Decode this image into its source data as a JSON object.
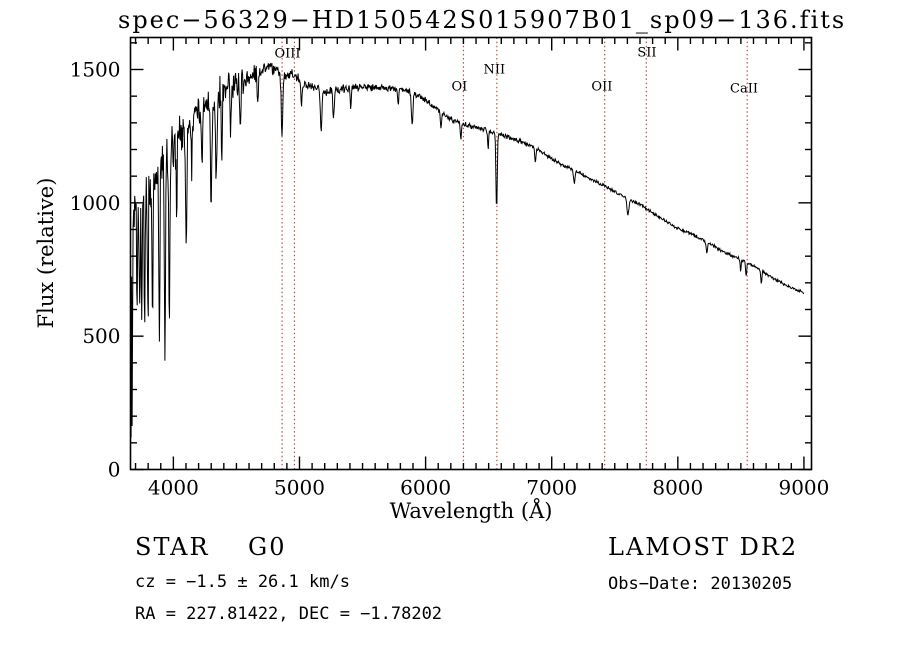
{
  "page": {
    "background": "#ffffff"
  },
  "chart_data": {
    "type": "line",
    "title": "spec−56329−HD150542S015907B01_sp09−136.fits",
    "xlabel": "Wavelength (Å)",
    "ylabel": "Flux (relative)",
    "xlim": [
      3660,
      9060
    ],
    "ylim": [
      0,
      1620
    ],
    "x_ticks": [
      4000,
      5000,
      6000,
      7000,
      8000,
      9000
    ],
    "y_ticks": [
      0,
      500,
      1000,
      1500
    ],
    "x_minor_step": 100,
    "y_minor_step": 100,
    "grid": false,
    "legend": "none",
    "trace_color": "#000000",
    "marker_line_color": "#aa5a52",
    "continuum_points": [
      [
        3660,
        620
      ],
      [
        3680,
        820
      ],
      [
        3700,
        950
      ],
      [
        3760,
        1020
      ],
      [
        3820,
        1070
      ],
      [
        3880,
        1120
      ],
      [
        3940,
        1165
      ],
      [
        4000,
        1215
      ],
      [
        4060,
        1255
      ],
      [
        4120,
        1300
      ],
      [
        4180,
        1335
      ],
      [
        4240,
        1370
      ],
      [
        4300,
        1400
      ],
      [
        4360,
        1412
      ],
      [
        4420,
        1425
      ],
      [
        4480,
        1440
      ],
      [
        4540,
        1452
      ],
      [
        4600,
        1466
      ],
      [
        4660,
        1486
      ],
      [
        4720,
        1505
      ],
      [
        4780,
        1506
      ],
      [
        4840,
        1496
      ],
      [
        4900,
        1482
      ],
      [
        4960,
        1476
      ],
      [
        5020,
        1452
      ],
      [
        5080,
        1436
      ],
      [
        5140,
        1426
      ],
      [
        5200,
        1420
      ],
      [
        5260,
        1420
      ],
      [
        5320,
        1426
      ],
      [
        5380,
        1430
      ],
      [
        5440,
        1432
      ],
      [
        5500,
        1435
      ],
      [
        5560,
        1433
      ],
      [
        5620,
        1430
      ],
      [
        5680,
        1430
      ],
      [
        5740,
        1428
      ],
      [
        5800,
        1425
      ],
      [
        5860,
        1420
      ],
      [
        5920,
        1408
      ],
      [
        5980,
        1390
      ],
      [
        6040,
        1372
      ],
      [
        6100,
        1348
      ],
      [
        6160,
        1328
      ],
      [
        6220,
        1310
      ],
      [
        6280,
        1300
      ],
      [
        6340,
        1290
      ],
      [
        6400,
        1283
      ],
      [
        6460,
        1278
      ],
      [
        6520,
        1268
      ],
      [
        6580,
        1258
      ],
      [
        6640,
        1248
      ],
      [
        6700,
        1238
      ],
      [
        6760,
        1228
      ],
      [
        6820,
        1218
      ],
      [
        6880,
        1205
      ],
      [
        6940,
        1185
      ],
      [
        7000,
        1165
      ],
      [
        7060,
        1150
      ],
      [
        7120,
        1135
      ],
      [
        7180,
        1122
      ],
      [
        7240,
        1108
      ],
      [
        7300,
        1092
      ],
      [
        7360,
        1078
      ],
      [
        7420,
        1062
      ],
      [
        7480,
        1048
      ],
      [
        7540,
        1032
      ],
      [
        7600,
        1018
      ],
      [
        7660,
        1002
      ],
      [
        7720,
        988
      ],
      [
        7780,
        968
      ],
      [
        7840,
        950
      ],
      [
        7900,
        932
      ],
      [
        7960,
        915
      ],
      [
        8020,
        900
      ],
      [
        8080,
        888
      ],
      [
        8140,
        875
      ],
      [
        8200,
        862
      ],
      [
        8260,
        845
      ],
      [
        8320,
        828
      ],
      [
        8380,
        812
      ],
      [
        8440,
        800
      ],
      [
        8500,
        788
      ],
      [
        8560,
        772
      ],
      [
        8620,
        758
      ],
      [
        8680,
        740
      ],
      [
        8740,
        722
      ],
      [
        8800,
        705
      ],
      [
        8860,
        690
      ],
      [
        8920,
        678
      ],
      [
        8960,
        670
      ],
      [
        9000,
        665
      ]
    ],
    "absorption_features": [
      [
        3663,
        700,
        2
      ],
      [
        3674,
        750,
        2
      ],
      [
        3712,
        420,
        3
      ],
      [
        3734,
        460,
        3
      ],
      [
        3750,
        500,
        3
      ],
      [
        3771,
        450,
        3
      ],
      [
        3798,
        520,
        3.5
      ],
      [
        3835,
        560,
        4
      ],
      [
        3889,
        620,
        4.5
      ],
      [
        3933,
        720,
        5
      ],
      [
        3968,
        620,
        5
      ],
      [
        4026,
        260,
        4
      ],
      [
        4101,
        390,
        6
      ],
      [
        4144,
        200,
        4
      ],
      [
        4227,
        230,
        4
      ],
      [
        4300,
        340,
        7
      ],
      [
        4340,
        330,
        6
      ],
      [
        4383,
        260,
        4
      ],
      [
        4455,
        170,
        4
      ],
      [
        4531,
        180,
        4
      ],
      [
        4668,
        130,
        4
      ],
      [
        4861,
        250,
        6
      ],
      [
        5015,
        100,
        4
      ],
      [
        5172,
        160,
        6
      ],
      [
        5270,
        110,
        5
      ],
      [
        5406,
        80,
        4
      ],
      [
        5782,
        60,
        4
      ],
      [
        5893,
        130,
        6
      ],
      [
        6122,
        70,
        4
      ],
      [
        6280,
        60,
        4
      ],
      [
        6495,
        70,
        4
      ],
      [
        6563,
        290,
        5
      ],
      [
        6870,
        55,
        5
      ],
      [
        7180,
        45,
        6
      ],
      [
        7605,
        60,
        8
      ],
      [
        8230,
        40,
        6
      ],
      [
        8498,
        45,
        4
      ],
      [
        8542,
        55,
        4
      ],
      [
        8662,
        50,
        4
      ],
      [
        9000,
        655,
        1
      ]
    ],
    "noise_profile": [
      [
        3660,
        260
      ],
      [
        3700,
        150
      ],
      [
        3850,
        125
      ],
      [
        4000,
        105
      ],
      [
        4200,
        95
      ],
      [
        4400,
        75
      ],
      [
        4550,
        55
      ],
      [
        4700,
        34
      ],
      [
        4900,
        27
      ],
      [
        5100,
        22
      ],
      [
        5400,
        18
      ],
      [
        5700,
        16
      ],
      [
        6000,
        13
      ],
      [
        6400,
        11
      ],
      [
        6800,
        9
      ],
      [
        7400,
        8
      ],
      [
        8200,
        7
      ],
      [
        9000,
        6
      ]
    ],
    "spectral_line_markers": [
      {
        "label": "OIII",
        "wavelengths": [
          4862,
          4960
        ],
        "label_wavelength": 4905,
        "label_offset_y": 20
      },
      {
        "label": "NII",
        "wavelengths": [
          6565
        ],
        "label_wavelength": 6545,
        "label_offset_y": 36
      },
      {
        "label": "OI",
        "wavelengths": [
          6300
        ],
        "label_wavelength": 6268,
        "label_offset_y": 53
      },
      {
        "label": "OII",
        "wavelengths": [
          7420
        ],
        "label_wavelength": 7398,
        "label_offset_y": 53
      },
      {
        "label": "SII",
        "wavelengths": [
          7750
        ],
        "label_wavelength": 7755,
        "label_offset_y": 19
      },
      {
        "label": "CaII",
        "wavelengths": [
          8550
        ],
        "label_wavelength": 8525,
        "label_offset_y": 55
      }
    ]
  },
  "annotations": {
    "class_label": "STAR    G0",
    "survey": "LAMOST DR2",
    "cz": "cz = −1.5 ± 26.1 km/s",
    "obs_date": "Obs−Date: 20130205",
    "ra_dec": "RA = 227.81422, DEC = −1.78202"
  }
}
